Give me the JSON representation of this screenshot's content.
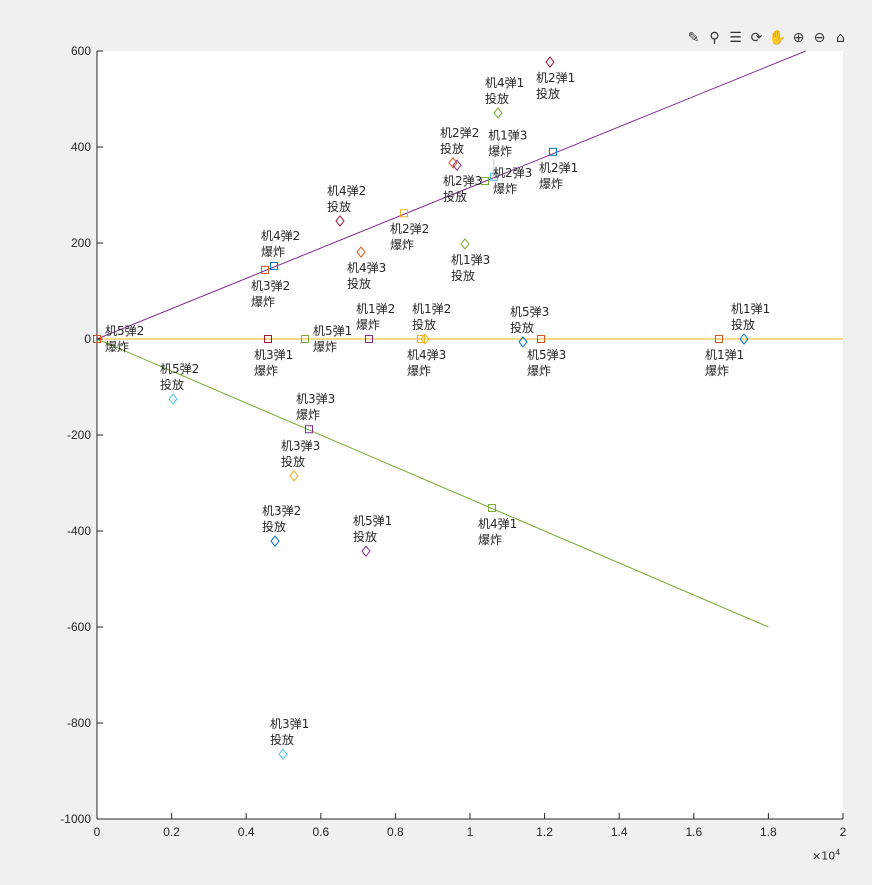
{
  "toolbar": [
    {
      "name": "brush-icon",
      "glyph": "✎"
    },
    {
      "name": "data-cursor-icon",
      "glyph": "⚲"
    },
    {
      "name": "legend-icon",
      "glyph": "☰"
    },
    {
      "name": "rotate-icon",
      "glyph": "⟳"
    },
    {
      "name": "pan-icon",
      "glyph": "✋"
    },
    {
      "name": "zoom-in-icon",
      "glyph": "⊕"
    },
    {
      "name": "zoom-out-icon",
      "glyph": "⊖"
    },
    {
      "name": "home-icon",
      "glyph": "⌂"
    }
  ],
  "chart_data": {
    "type": "scatter",
    "xlim": [
      0,
      20000
    ],
    "ylim": [
      -1000,
      600
    ],
    "xticks": [
      0,
      2000,
      4000,
      6000,
      8000,
      10000,
      12000,
      14000,
      16000,
      18000,
      20000
    ],
    "xtick_labels": [
      "0",
      "0.2",
      "0.4",
      "0.6",
      "0.8",
      "1",
      "1.2",
      "1.4",
      "1.6",
      "1.8",
      "2"
    ],
    "yticks": [
      600,
      400,
      200,
      0,
      -200,
      -400,
      -600,
      -800,
      -1000
    ],
    "x_exponent_base": "×10",
    "x_exponent": "4",
    "colors": {
      "blue": "#0072BD",
      "orange": "#D95319",
      "yellow": "#EDB120",
      "purple": "#7E2F8E",
      "green": "#77AC30",
      "cyan": "#4DBEEE",
      "darkred": "#A2142F"
    },
    "lines": [
      {
        "name": "line-upper",
        "color": "#7E2F8E",
        "x": [
          0,
          19000
        ],
        "y": [
          0,
          600
        ]
      },
      {
        "name": "line-middle",
        "color": "#EDB120",
        "x": [
          0,
          20000
        ],
        "y": [
          0,
          0
        ]
      },
      {
        "name": "line-lower",
        "color": "#77AC30",
        "x": [
          0,
          18000
        ],
        "y": [
          0,
          -600
        ]
      }
    ],
    "release_label": "投放",
    "explode_label": "爆炸",
    "points": [
      {
        "label": "机2弹1",
        "kind": "release",
        "x": 12145,
        "y": 577,
        "color": "#A2142F"
      },
      {
        "label": "机4弹1",
        "kind": "release",
        "x": 10750,
        "y": 471,
        "color": "#77AC30"
      },
      {
        "label": "机2弹2",
        "kind": "release",
        "x": 9544,
        "y": 367,
        "color": "#D95319"
      },
      {
        "label": "机2弹3",
        "kind": "release",
        "x": 9651,
        "y": 362,
        "color": "#7E2F8E"
      },
      {
        "label": "机4弹2",
        "kind": "release",
        "x": 6515,
        "y": 246,
        "color": "#A2142F"
      },
      {
        "label": "机4弹3",
        "kind": "release",
        "x": 7078,
        "y": 181,
        "color": "#D95319"
      },
      {
        "label": "机1弹3",
        "kind": "release",
        "x": 9866,
        "y": 198,
        "color": "#77AC30"
      },
      {
        "label": "机1弹2",
        "kind": "release",
        "x": 8794,
        "y": 0,
        "color": "#EDB120"
      },
      {
        "label": "机5弹3",
        "kind": "release",
        "x": 11421,
        "y": -6,
        "color": "#0072BD"
      },
      {
        "label": "机1弹1",
        "kind": "release",
        "x": 17346,
        "y": 0,
        "color": "#0072BD"
      },
      {
        "label": "机5弹2",
        "kind": "release",
        "x": 2038,
        "y": -125,
        "color": "#4DBEEE"
      },
      {
        "label": "机3弹3",
        "kind": "release",
        "x": 5282,
        "y": -285,
        "color": "#EDB120"
      },
      {
        "label": "机3弹2",
        "kind": "release",
        "x": 4772,
        "y": -421,
        "color": "#0072BD"
      },
      {
        "label": "机5弹1",
        "kind": "release",
        "x": 7212,
        "y": -442,
        "color": "#7E2F8E"
      },
      {
        "label": "机3弹1",
        "kind": "release",
        "x": 4987,
        "y": -865,
        "color": "#4DBEEE"
      },
      {
        "label": "机2弹1",
        "kind": "explode",
        "x": 12225,
        "y": 390,
        "color": "#0072BD"
      },
      {
        "label": "机2弹3",
        "kind": "explode",
        "x": 10402,
        "y": 329,
        "color": "#77AC30"
      },
      {
        "label": "机1弹3",
        "kind": "explode",
        "x": 10643,
        "y": 338,
        "color": "#4DBEEE"
      },
      {
        "label": "机2弹2",
        "kind": "explode",
        "x": 8231,
        "y": 262,
        "color": "#EDB120"
      },
      {
        "label": "机3弹2",
        "kind": "explode",
        "x": 4504,
        "y": 144,
        "color": "#D95319"
      },
      {
        "label": "机4弹2",
        "kind": "explode",
        "x": 4745,
        "y": 152,
        "color": "#0072BD"
      },
      {
        "label": "机5弹2",
        "kind": "explode",
        "x": 0,
        "y": 0,
        "color": "#D95319"
      },
      {
        "label": "机3弹1",
        "kind": "explode",
        "x": 4584,
        "y": 0,
        "color": "#A2142F"
      },
      {
        "label": "机5弹1",
        "kind": "explode",
        "x": 5576,
        "y": 0,
        "color": "#77AC30"
      },
      {
        "label": "机1弹2",
        "kind": "explode",
        "x": 7292,
        "y": 0,
        "color": "#7E2F8E"
      },
      {
        "label": "机4弹3",
        "kind": "explode",
        "x": 8686,
        "y": 0,
        "color": "#EDB120"
      },
      {
        "label": "机5弹3",
        "kind": "explode",
        "x": 11903,
        "y": 0,
        "color": "#D95319"
      },
      {
        "label": "机1弹1",
        "kind": "explode",
        "x": 16676,
        "y": 0,
        "color": "#D95319"
      },
      {
        "label": "机3弹3",
        "kind": "explode",
        "x": 5684,
        "y": -188,
        "color": "#7E2F8E"
      },
      {
        "label": "机4弹1",
        "kind": "explode",
        "x": 10590,
        "y": -352,
        "color": "#77AC30"
      }
    ]
  }
}
